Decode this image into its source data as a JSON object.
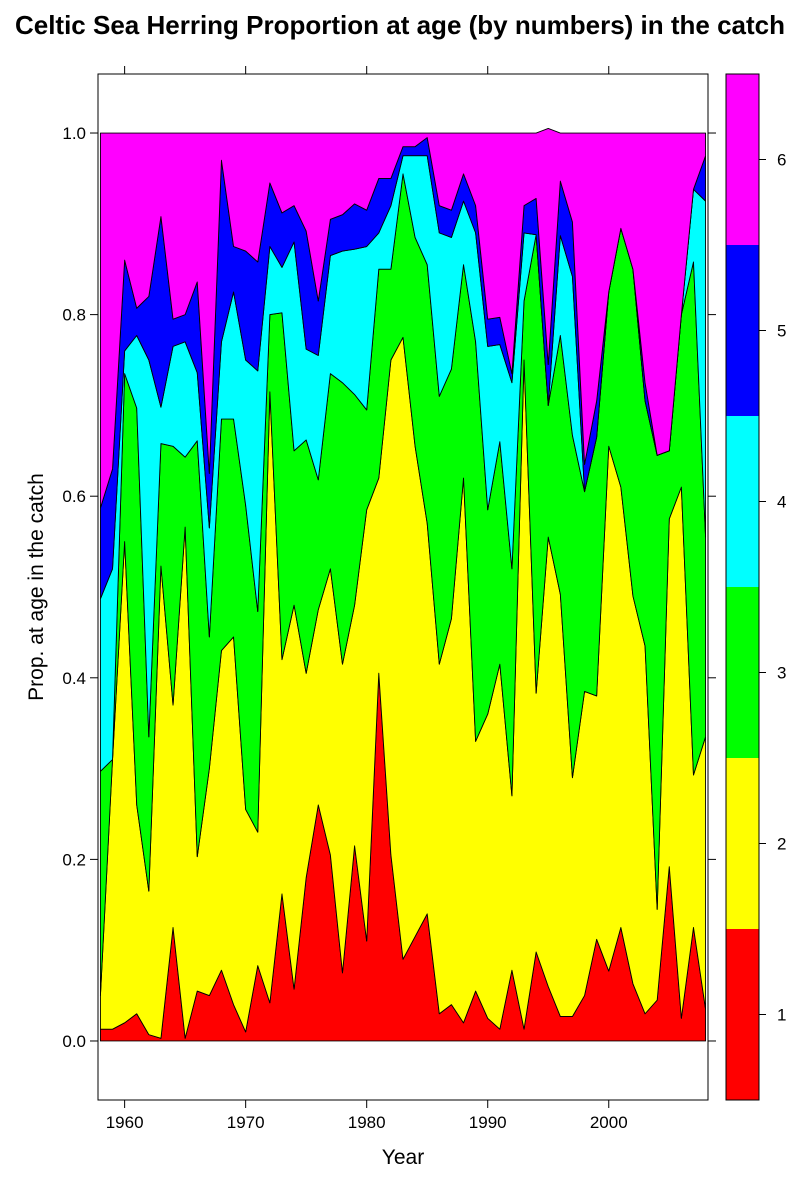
{
  "chart_data": {
    "type": "area",
    "stacked": true,
    "normalized": true,
    "title": "Celtic Sea Herring Proportion at age (by numbers) in the catch",
    "xlabel": "Year",
    "ylabel": "Prop. at age in the catch",
    "xlim": [
      1957.8,
      2008.2
    ],
    "ylim": [
      -0.065,
      1.065
    ],
    "x_ticks": [
      1960,
      1970,
      1980,
      1990,
      2000
    ],
    "y_ticks": [
      0.0,
      0.2,
      0.4,
      0.6,
      0.8,
      1.0
    ],
    "y_tick_labels": [
      "0.0",
      "0.2",
      "0.4",
      "0.6",
      "0.8",
      "1.0"
    ],
    "legend_position": "right colorbar",
    "x": [
      1958,
      1959,
      1960,
      1961,
      1962,
      1963,
      1964,
      1965,
      1966,
      1967,
      1968,
      1969,
      1970,
      1971,
      1972,
      1973,
      1974,
      1975,
      1976,
      1977,
      1978,
      1979,
      1980,
      1981,
      1982,
      1983,
      1984,
      1985,
      1986,
      1987,
      1988,
      1989,
      1990,
      1991,
      1992,
      1993,
      1994,
      1995,
      1996,
      1997,
      1998,
      1999,
      2000,
      2001,
      2002,
      2003,
      2004,
      2005,
      2006,
      2007,
      2008
    ],
    "series": [
      {
        "name": "1",
        "color": "#FF0000",
        "values": [
          0.013,
          0.013,
          0.02,
          0.03,
          0.007,
          0.003,
          0.125,
          0.003,
          0.055,
          0.05,
          0.078,
          0.04,
          0.01,
          0.083,
          0.042,
          0.162,
          0.057,
          0.18,
          0.26,
          0.205,
          0.075,
          0.215,
          0.11,
          0.405,
          0.205,
          0.09,
          0.115,
          0.14,
          0.03,
          0.04,
          0.02,
          0.055,
          0.025,
          0.013,
          0.078,
          0.013,
          0.098,
          0.06,
          0.027,
          0.027,
          0.05,
          0.112,
          0.077,
          0.125,
          0.063,
          0.03,
          0.045,
          0.192,
          0.025,
          0.125,
          0.035
        ]
      },
      {
        "name": "2",
        "color": "#FFFF00",
        "values": [
          0.037,
          0.297,
          0.53,
          0.23,
          0.158,
          0.52,
          0.245,
          0.563,
          0.148,
          0.25,
          0.352,
          0.405,
          0.245,
          0.147,
          0.673,
          0.258,
          0.423,
          0.225,
          0.215,
          0.315,
          0.34,
          0.265,
          0.475,
          0.215,
          0.545,
          0.685,
          0.54,
          0.43,
          0.385,
          0.425,
          0.6,
          0.275,
          0.335,
          0.402,
          0.192,
          0.737,
          0.285,
          0.495,
          0.465,
          0.263,
          0.335,
          0.268,
          0.578,
          0.485,
          0.427,
          0.405,
          0.1,
          0.383,
          0.585,
          0.168,
          0.3
        ]
      },
      {
        "name": "3",
        "color": "#00FF00",
        "values": [
          0.247,
          0.0,
          0.185,
          0.437,
          0.17,
          0.135,
          0.285,
          0.077,
          0.458,
          0.145,
          0.255,
          0.24,
          0.335,
          0.243,
          0.085,
          0.382,
          0.17,
          0.257,
          0.143,
          0.215,
          0.31,
          0.232,
          0.11,
          0.23,
          0.1,
          0.18,
          0.23,
          0.285,
          0.295,
          0.275,
          0.235,
          0.44,
          0.225,
          0.245,
          0.25,
          0.065,
          0.505,
          0.145,
          0.285,
          0.377,
          0.22,
          0.285,
          0.17,
          0.285,
          0.36,
          0.27,
          0.5,
          0.075,
          0.19,
          0.565,
          0.22
        ]
      },
      {
        "name": "4",
        "color": "#00FFFF",
        "values": [
          0.19,
          0.21,
          0.025,
          0.08,
          0.415,
          0.04,
          0.11,
          0.127,
          0.075,
          0.12,
          0.085,
          0.14,
          0.16,
          0.265,
          0.075,
          0.05,
          0.23,
          0.1,
          0.137,
          0.13,
          0.145,
          0.16,
          0.18,
          0.04,
          0.07,
          0.02,
          0.09,
          0.12,
          0.18,
          0.145,
          0.07,
          0.12,
          0.18,
          0.107,
          0.205,
          0.075,
          0.0,
          0.0,
          0.11,
          0.175,
          0.0,
          0.0,
          0.0,
          0.0,
          0.0,
          0.0,
          0.0,
          0.0,
          0.0,
          0.08,
          0.37
        ]
      },
      {
        "name": "5",
        "color": "#0000FF",
        "values": [
          0.1,
          0.11,
          0.1,
          0.03,
          0.07,
          0.21,
          0.03,
          0.03,
          0.1,
          0.06,
          0.2,
          0.05,
          0.12,
          0.12,
          0.07,
          0.06,
          0.04,
          0.13,
          0.06,
          0.04,
          0.04,
          0.05,
          0.04,
          0.06,
          0.03,
          0.01,
          0.01,
          0.02,
          0.03,
          0.03,
          0.03,
          0.03,
          0.03,
          0.03,
          0.01,
          0.03,
          0.04,
          0.045,
          0.06,
          0.06,
          0.03,
          0.04,
          0.0,
          0.0,
          0.0,
          0.02,
          0.0,
          0.0,
          0.0,
          0.0,
          0.05
        ]
      },
      {
        "name": "6",
        "color": "#FF00FF",
        "values": [
          0.413,
          0.37,
          0.14,
          0.193,
          0.18,
          0.092,
          0.205,
          0.2,
          0.164,
          0.375,
          0.03,
          0.125,
          0.13,
          0.142,
          0.055,
          0.088,
          0.08,
          0.108,
          0.185,
          0.095,
          0.09,
          0.078,
          0.085,
          0.05,
          0.05,
          0.015,
          0.015,
          0.005,
          0.08,
          0.085,
          0.045,
          0.08,
          0.205,
          0.203,
          0.265,
          0.08,
          0.072,
          0.26,
          0.053,
          0.098,
          0.365,
          0.295,
          0.175,
          0.105,
          0.15,
          0.275,
          0.355,
          0.35,
          0.2,
          0.062,
          0.025
        ]
      }
    ]
  }
}
